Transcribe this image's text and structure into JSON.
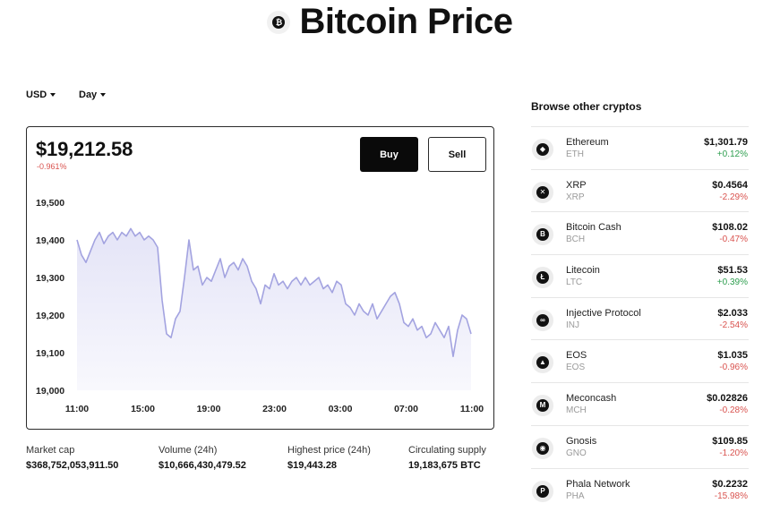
{
  "header": {
    "title": "Bitcoin Price",
    "icon": "bitcoin-icon"
  },
  "controls": {
    "currency": "USD",
    "period": "Day"
  },
  "price_card": {
    "price": "$19,212.58",
    "change": "-0.961%",
    "buy_label": "Buy",
    "sell_label": "Sell"
  },
  "chart_data": {
    "type": "area",
    "x_ticks": [
      "11:00",
      "15:00",
      "19:00",
      "23:00",
      "03:00",
      "07:00",
      "11:00"
    ],
    "y_ticks": [
      "19,500",
      "19,400",
      "19,300",
      "19,200",
      "19,100",
      "19,000"
    ],
    "ylim": [
      19000,
      19500
    ],
    "line_color": "#a3a3e0",
    "fill_color": "#e4e4f7",
    "values": [
      19400,
      19360,
      19340,
      19370,
      19400,
      19420,
      19390,
      19410,
      19420,
      19400,
      19420,
      19410,
      19430,
      19410,
      19420,
      19400,
      19410,
      19400,
      19380,
      19240,
      19150,
      19140,
      19190,
      19210,
      19300,
      19400,
      19320,
      19330,
      19280,
      19300,
      19290,
      19320,
      19350,
      19300,
      19330,
      19340,
      19320,
      19350,
      19330,
      19290,
      19270,
      19230,
      19280,
      19270,
      19310,
      19280,
      19290,
      19270,
      19290,
      19300,
      19280,
      19300,
      19280,
      19290,
      19300,
      19270,
      19280,
      19260,
      19290,
      19280,
      19230,
      19220,
      19200,
      19230,
      19210,
      19200,
      19230,
      19190,
      19210,
      19230,
      19250,
      19260,
      19230,
      19180,
      19170,
      19190,
      19160,
      19170,
      19140,
      19150,
      19180,
      19160,
      19140,
      19170,
      19090,
      19160,
      19200,
      19190,
      19150
    ]
  },
  "stats": [
    {
      "label": "Market cap",
      "value": "$368,752,053,911.50"
    },
    {
      "label": "Volume (24h)",
      "value": "$10,666,430,479.52"
    },
    {
      "label": "Highest price (24h)",
      "value": "$19,443.28"
    },
    {
      "label": "Circulating supply",
      "value": "19,183,675 BTC"
    }
  ],
  "browse": {
    "title": "Browse other cryptos",
    "items": [
      {
        "name": "Ethereum",
        "symbol": "ETH",
        "price": "$1,301.79",
        "change": "+0.12%",
        "dir": "pos",
        "icon": "ethereum-icon",
        "glyph": "◆"
      },
      {
        "name": "XRP",
        "symbol": "XRP",
        "price": "$0.4564",
        "change": "-2.29%",
        "dir": "neg",
        "icon": "xrp-icon",
        "glyph": "✕"
      },
      {
        "name": "Bitcoin Cash",
        "symbol": "BCH",
        "price": "$108.02",
        "change": "-0.47%",
        "dir": "neg",
        "icon": "bitcoin-cash-icon",
        "glyph": "B"
      },
      {
        "name": "Litecoin",
        "symbol": "LTC",
        "price": "$51.53",
        "change": "+0.39%",
        "dir": "pos",
        "icon": "litecoin-icon",
        "glyph": "Ł"
      },
      {
        "name": "Injective Protocol",
        "symbol": "INJ",
        "price": "$2.033",
        "change": "-2.54%",
        "dir": "neg",
        "icon": "injective-icon",
        "glyph": "∞"
      },
      {
        "name": "EOS",
        "symbol": "EOS",
        "price": "$1.035",
        "change": "-0.96%",
        "dir": "neg",
        "icon": "eos-icon",
        "glyph": "▲"
      },
      {
        "name": "Meconcash",
        "symbol": "MCH",
        "price": "$0.02826",
        "change": "-0.28%",
        "dir": "neg",
        "icon": "meconcash-icon",
        "glyph": "M"
      },
      {
        "name": "Gnosis",
        "symbol": "GNO",
        "price": "$109.85",
        "change": "-1.20%",
        "dir": "neg",
        "icon": "gnosis-icon",
        "glyph": "◉"
      },
      {
        "name": "Phala Network",
        "symbol": "PHA",
        "price": "$0.2232",
        "change": "-15.98%",
        "dir": "neg",
        "icon": "phala-icon",
        "glyph": "P"
      }
    ]
  }
}
